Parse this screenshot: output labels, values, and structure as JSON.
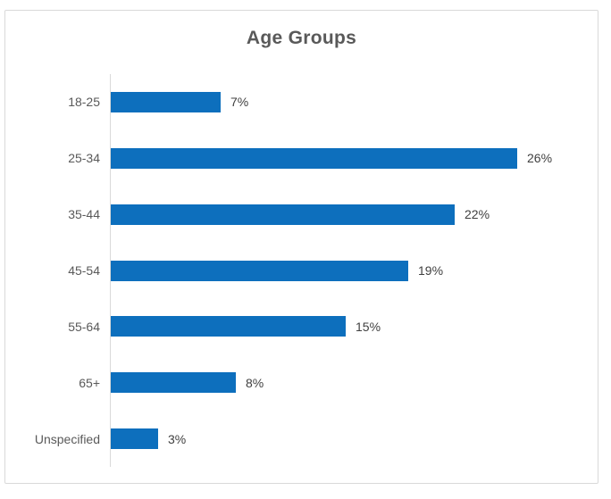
{
  "chart_data": {
    "type": "bar",
    "orientation": "horizontal",
    "title": "Age Groups",
    "categories": [
      "18-25",
      "25-34",
      "35-44",
      "45-54",
      "55-64",
      "65+",
      "Unspecified"
    ],
    "values": [
      7,
      26,
      22,
      19,
      15,
      8,
      3
    ],
    "data_labels": [
      "7%",
      "26%",
      "22%",
      "19%",
      "15%",
      "8%",
      "3%"
    ],
    "xlabel": "",
    "ylabel": "",
    "xlim": [
      0,
      30
    ],
    "grid": false,
    "legend": false,
    "colors": {
      "bar": "#0d6fbd",
      "title": "#595959",
      "category_label": "#595959",
      "data_label": "#404040",
      "axis_line": "#d9d9d9",
      "chart_border": "#d9d9d9",
      "background": "#ffffff"
    }
  }
}
